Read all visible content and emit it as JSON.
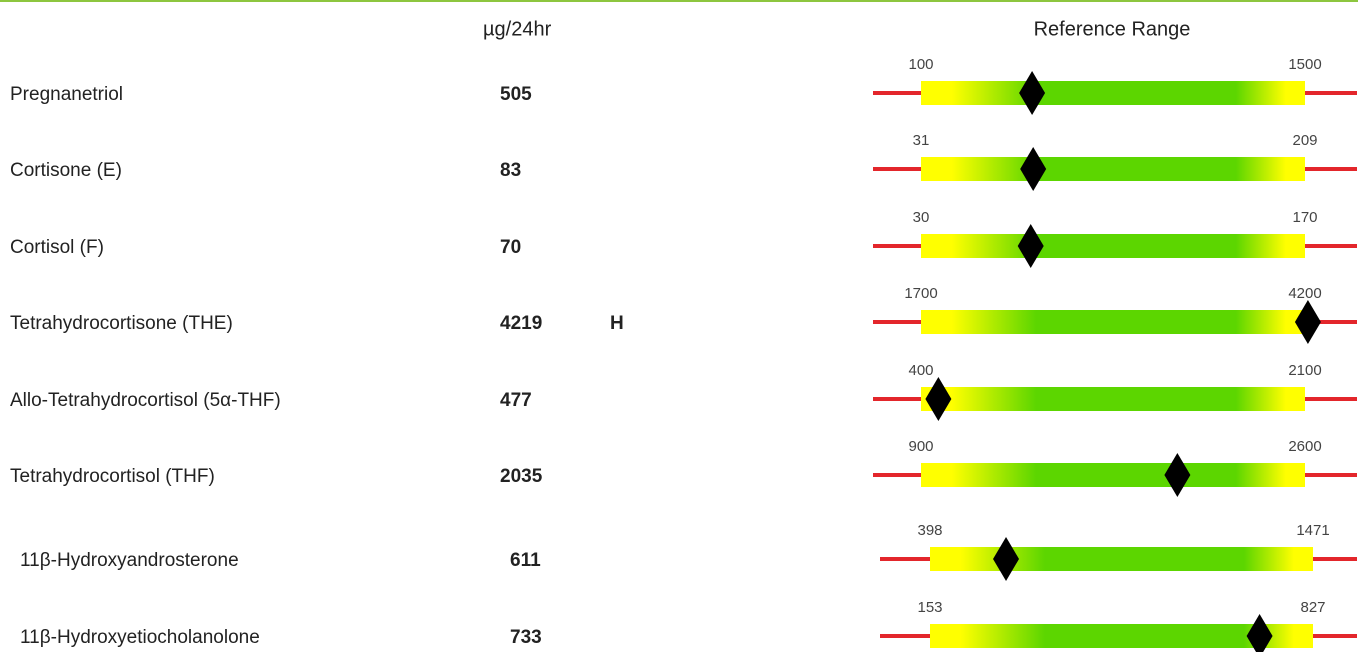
{
  "header": {
    "unit": "µg/24hr",
    "reference_range": "Reference Range"
  },
  "rows": [
    {
      "name": "Pregnanetriol",
      "value": 505,
      "low": 100,
      "high": 1500
    },
    {
      "name": "Cortisone (E)",
      "value": 83,
      "low": 31,
      "high": 209
    },
    {
      "name": "Cortisol (F)",
      "value": 70,
      "low": 30,
      "high": 170
    },
    {
      "name": "Tetrahydrocortisone (THE)",
      "value": 4219,
      "flag": "H",
      "low": 1700,
      "high": 4200
    },
    {
      "name": "Allo-Tetrahydrocortisol (5α-THF)",
      "value": 477,
      "low": 400,
      "high": 2100
    },
    {
      "name": "Tetrahydrocortisol (THF)",
      "value": 2035,
      "low": 900,
      "high": 2600
    },
    {
      "name": "11β-Hydroxyandrosterone",
      "value": 611,
      "low": 398,
      "high": 1471
    },
    {
      "name": "11β-Hydroxyetiocholanolone",
      "value": 733,
      "low": 153,
      "high": 827
    }
  ]
}
